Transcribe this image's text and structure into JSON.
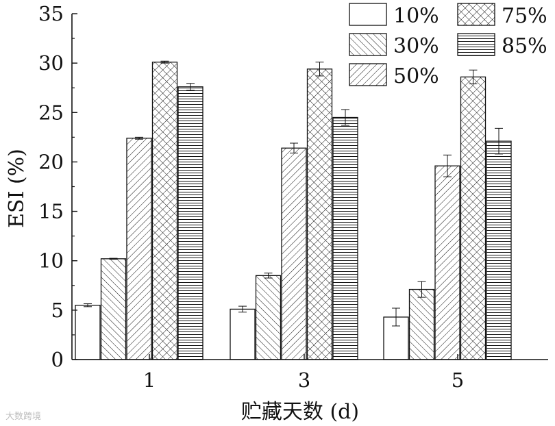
{
  "chart_data": {
    "type": "bar",
    "xlabel": "贮藏天数 (d)",
    "ylabel": "ESI (%)",
    "ylim": [
      0,
      35
    ],
    "yticks": [
      0,
      5,
      10,
      15,
      20,
      25,
      30,
      35
    ],
    "categories": [
      "1",
      "3",
      "5"
    ],
    "legend_position": "top-right",
    "series": [
      {
        "name": "10%",
        "pattern": "empty",
        "values": [
          5.5,
          5.1,
          4.3
        ],
        "errors": [
          0.15,
          0.3,
          0.9
        ]
      },
      {
        "name": "30%",
        "pattern": "diag-up",
        "values": [
          10.2,
          8.5,
          7.1
        ],
        "errors": [
          0.05,
          0.25,
          0.8
        ]
      },
      {
        "name": "50%",
        "pattern": "diag-down",
        "values": [
          22.4,
          21.4,
          19.6
        ],
        "errors": [
          0.1,
          0.5,
          1.1
        ]
      },
      {
        "name": "75%",
        "pattern": "cross",
        "values": [
          30.1,
          29.4,
          28.6
        ],
        "errors": [
          0.1,
          0.7,
          0.7
        ]
      },
      {
        "name": "85%",
        "pattern": "horizontal",
        "values": [
          27.6,
          24.5,
          22.1
        ],
        "errors": [
          0.35,
          0.8,
          1.3
        ]
      }
    ]
  },
  "watermark": "大数跨境"
}
